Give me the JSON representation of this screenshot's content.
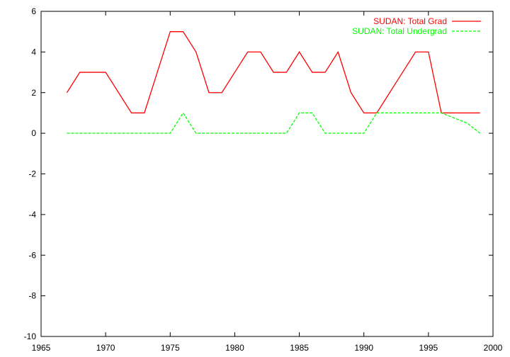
{
  "chart_data": {
    "type": "line",
    "title": "",
    "xlabel": "",
    "ylabel": "",
    "xlim": [
      1965,
      2000
    ],
    "ylim": [
      -10,
      6
    ],
    "x_ticks": [
      1965,
      1970,
      1975,
      1980,
      1985,
      1990,
      1995,
      2000
    ],
    "y_ticks": [
      -10,
      -8,
      -6,
      -4,
      -2,
      0,
      2,
      4,
      6
    ],
    "grid": false,
    "legend_position": "top-right",
    "x": [
      1967,
      1968,
      1969,
      1970,
      1971,
      1972,
      1973,
      1974,
      1975,
      1976,
      1977,
      1978,
      1979,
      1980,
      1981,
      1982,
      1983,
      1984,
      1985,
      1986,
      1987,
      1988,
      1989,
      1990,
      1991,
      1992,
      1993,
      1994,
      1995,
      1996,
      1997,
      1998,
      1999
    ],
    "series": [
      {
        "name": "SUDAN: Total Grad",
        "color": "#ff0000",
        "dash": "solid",
        "values": [
          2,
          3,
          3,
          3,
          2,
          1,
          1,
          3,
          5,
          5,
          4,
          2,
          2,
          3,
          4,
          4,
          3,
          3,
          4,
          3,
          3,
          4,
          2,
          1,
          1,
          2,
          3,
          4,
          4,
          1,
          1,
          1,
          1
        ]
      },
      {
        "name": "SUDAN: Total Undergrad",
        "color": "#00ff00",
        "dash": "dashed",
        "values": [
          0,
          0,
          0,
          0,
          0,
          0,
          0,
          0,
          0,
          1,
          0,
          0,
          0,
          0,
          0,
          0,
          0,
          0,
          1,
          1,
          0,
          0,
          0,
          0,
          1,
          1,
          1,
          1,
          1,
          1,
          0.75,
          0.5,
          0
        ]
      }
    ]
  }
}
